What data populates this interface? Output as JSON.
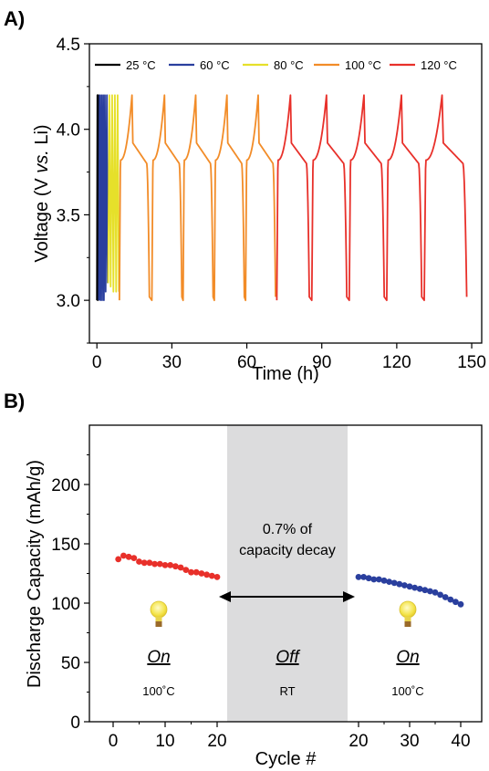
{
  "chart_data": [
    {
      "type": "line",
      "panel_label": "A)",
      "xlabel": "Time (h)",
      "ylabel_parts": [
        "Voltage (V ",
        "vs.",
        " Li)"
      ],
      "xlim": [
        -3,
        154
      ],
      "ylim": [
        2.75,
        4.5
      ],
      "x_ticks": [
        0,
        30,
        60,
        90,
        120,
        150
      ],
      "y_ticks": [
        "3.0",
        "3.5",
        "4.0",
        "4.5"
      ],
      "y_tick_values": [
        3.0,
        3.5,
        4.0,
        4.5
      ],
      "legend": [
        {
          "name": "25 °C",
          "color": "#000000"
        },
        {
          "name": "60 °C",
          "color": "#2a3f9e"
        },
        {
          "name": "80 °C",
          "color": "#e6e02a"
        },
        {
          "name": "100 °C",
          "color": "#f28c28"
        },
        {
          "name": "120 °C",
          "color": "#e8302a"
        }
      ],
      "series": [
        {
          "name": "25 °C",
          "color": "#000000",
          "points": [
            [
              0.0,
              3.0
            ],
            [
              0.2,
              4.2
            ],
            [
              0.35,
              3.0
            ],
            [
              0.5,
              4.2
            ],
            [
              0.7,
              3.0
            ]
          ]
        },
        {
          "name": "60 °C",
          "color": "#2a3f9e",
          "points": [
            [
              0.8,
              3.0
            ],
            [
              1.1,
              4.2
            ],
            [
              1.4,
              3.0
            ],
            [
              1.8,
              4.2
            ],
            [
              2.1,
              3.0
            ],
            [
              2.5,
              4.2
            ],
            [
              2.8,
              3.0
            ],
            [
              3.2,
              4.2
            ],
            [
              3.5,
              3.05
            ],
            [
              4.0,
              4.2
            ],
            [
              4.3,
              3.1
            ]
          ]
        },
        {
          "name": "80 °C",
          "color": "#e6e02a",
          "points": [
            [
              4.5,
              3.1
            ],
            [
              5.0,
              4.2
            ],
            [
              5.5,
              3.08
            ],
            [
              6.1,
              4.2
            ],
            [
              6.6,
              3.05
            ],
            [
              7.2,
              4.2
            ],
            [
              7.7,
              3.05
            ],
            [
              8.3,
              4.2
            ],
            [
              8.8,
              3.05
            ]
          ]
        },
        {
          "name": "100 °C",
          "color": "#f28c28",
          "cycles": [
            [
              9,
              21
            ],
            [
              22,
              34
            ],
            [
              34.5,
              46.5
            ],
            [
              47,
              59
            ],
            [
              59.5,
              71.5
            ]
          ]
        },
        {
          "name": "120 °C",
          "color": "#e8302a",
          "cycles": [
            [
              72,
              85
            ],
            [
              86,
              100
            ],
            [
              101,
              115
            ],
            [
              116,
              130
            ],
            [
              131,
              148
            ]
          ]
        }
      ]
    },
    {
      "type": "scatter",
      "panel_label": "B)",
      "xlabel": "Cycle #",
      "ylabel": "Discharge Capacity (mAh/g)",
      "ylim": [
        0,
        250
      ],
      "y_ticks": [
        0,
        50,
        100,
        150,
        200
      ],
      "x_tick_labels": [
        "0",
        "10",
        "20",
        "20",
        "30",
        "40"
      ],
      "segments": [
        {
          "state": "On",
          "temp": "100˚C",
          "color": "#e8302a",
          "cycles": [
            1,
            2,
            3,
            4,
            5,
            6,
            7,
            8,
            9,
            10,
            11,
            12,
            13,
            14,
            15,
            16,
            17,
            18,
            19,
            20
          ],
          "values": [
            137,
            140,
            139,
            138,
            135,
            134,
            134,
            133,
            133,
            132,
            132,
            131,
            130,
            128,
            126,
            126,
            125,
            124,
            123,
            122
          ]
        },
        {
          "state": "Off",
          "temp": "RT",
          "color": "#dcdcdd"
        },
        {
          "state": "On",
          "temp": "100˚C",
          "color": "#2a3f9e",
          "cycles": [
            20,
            21,
            22,
            23,
            24,
            25,
            26,
            27,
            28,
            29,
            30,
            31,
            32,
            33,
            34,
            35,
            36,
            37,
            38,
            39,
            40
          ],
          "values": [
            122,
            122,
            121,
            120,
            120,
            119,
            118,
            117,
            116,
            115,
            114,
            113,
            112,
            111,
            110,
            109,
            107,
            105,
            103,
            101,
            99
          ]
        }
      ],
      "annotation": [
        "0.7% of",
        "capacity decay"
      ]
    }
  ]
}
